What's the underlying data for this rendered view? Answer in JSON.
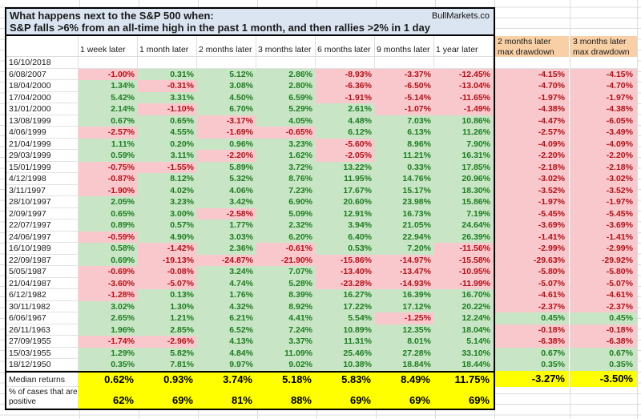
{
  "title": {
    "line1": "What happens next to the S&P 500 when:",
    "line2": "S&P falls >6% from an all-time high in the past 1 month, and then rallies >2% in 1 day",
    "brand": "BullMarkets.co"
  },
  "colors": {
    "title_bg": "#dbe5f1",
    "peach": "#f9cfa6",
    "green_bg": "#c8e6c6",
    "green_text": "#1d7c1f",
    "red_bg": "#f9c8cd",
    "red_text": "#b11016",
    "yellow": "#ffff00",
    "grid": "#dcdcdc"
  },
  "chart_data": {
    "type": "table",
    "columns": [
      "1 week later",
      "1 month later",
      "2 months later",
      "3 months later",
      "6 months later",
      "9 months later",
      "1 year later"
    ],
    "drawdown_columns": [
      {
        "line1": "2 months later",
        "line2": "max drawdown"
      },
      {
        "line1": "3 months later",
        "line2": "max drawdown"
      }
    ],
    "rows": [
      {
        "date": "16/10/2018",
        "values": [
          null,
          null,
          null,
          null,
          null,
          null,
          null
        ],
        "drawdowns": [
          null,
          null
        ]
      },
      {
        "date": "6/08/2007",
        "values": [
          "-1.00%",
          "0.31%",
          "5.12%",
          "2.86%",
          "-8.93%",
          "-3.37%",
          "-12.45%"
        ],
        "drawdowns": [
          "-4.15%",
          "-4.15%"
        ]
      },
      {
        "date": "18/04/2000",
        "values": [
          "1.34%",
          "-0.31%",
          "3.08%",
          "2.80%",
          "-6.36%",
          "-6.50%",
          "-13.04%"
        ],
        "drawdowns": [
          "-4.70%",
          "-4.70%"
        ]
      },
      {
        "date": "17/04/2000",
        "values": [
          "5.42%",
          "3.31%",
          "4.50%",
          "6.59%",
          "-1.91%",
          "-5.14%",
          "-11.65%"
        ],
        "drawdowns": [
          "-1.97%",
          "-1.97%"
        ]
      },
      {
        "date": "31/01/2000",
        "values": [
          "2.14%",
          "-1.10%",
          "6.70%",
          "5.29%",
          "2.61%",
          "-1.07%",
          "-1.49%"
        ],
        "drawdowns": [
          "-4.38%",
          "-4.38%"
        ]
      },
      {
        "date": "13/08/1999",
        "values": [
          "0.67%",
          "0.65%",
          "-3.17%",
          "4.05%",
          "4.48%",
          "7.03%",
          "10.86%"
        ],
        "drawdowns": [
          "-4.47%",
          "-6.05%"
        ]
      },
      {
        "date": "4/06/1999",
        "values": [
          "-2.57%",
          "4.55%",
          "-1.69%",
          "-0.65%",
          "6.12%",
          "6.13%",
          "11.26%"
        ],
        "drawdowns": [
          "-2.57%",
          "-3.49%"
        ]
      },
      {
        "date": "21/04/1999",
        "values": [
          "1.11%",
          "0.20%",
          "0.96%",
          "3.23%",
          "-5.60%",
          "8.96%",
          "7.90%"
        ],
        "drawdowns": [
          "-4.09%",
          "-4.09%"
        ]
      },
      {
        "date": "29/03/1999",
        "values": [
          "0.59%",
          "3.11%",
          "-2.20%",
          "1.62%",
          "-2.05%",
          "11.21%",
          "16.31%"
        ],
        "drawdowns": [
          "-2.20%",
          "-2.20%"
        ]
      },
      {
        "date": "15/01/1999",
        "values": [
          "-0.75%",
          "-1.55%",
          "5.89%",
          "3.72%",
          "13.22%",
          "0.33%",
          "17.85%"
        ],
        "drawdowns": [
          "-2.18%",
          "-2.18%"
        ]
      },
      {
        "date": "4/12/1998",
        "values": [
          "-0.87%",
          "8.12%",
          "5.32%",
          "8.76%",
          "11.95%",
          "14.76%",
          "20.96%"
        ],
        "drawdowns": [
          "-3.02%",
          "-3.02%"
        ]
      },
      {
        "date": "3/11/1997",
        "values": [
          "-1.90%",
          "4.02%",
          "4.06%",
          "7.23%",
          "17.67%",
          "15.17%",
          "18.30%"
        ],
        "drawdowns": [
          "-3.52%",
          "-3.52%"
        ]
      },
      {
        "date": "28/10/1997",
        "values": [
          "2.05%",
          "3.23%",
          "3.42%",
          "6.90%",
          "20.60%",
          "23.98%",
          "15.86%"
        ],
        "drawdowns": [
          "-1.97%",
          "-1.97%"
        ]
      },
      {
        "date": "2/09/1997",
        "values": [
          "0.65%",
          "3.00%",
          "-2.58%",
          "5.09%",
          "12.91%",
          "16.73%",
          "7.19%"
        ],
        "drawdowns": [
          "-5.45%",
          "-5.45%"
        ]
      },
      {
        "date": "22/07/1997",
        "values": [
          "0.89%",
          "0.57%",
          "1.77%",
          "2.32%",
          "3.94%",
          "21.05%",
          "24.64%"
        ],
        "drawdowns": [
          "-3.69%",
          "-3.69%"
        ]
      },
      {
        "date": "24/06/1997",
        "values": [
          "-0.59%",
          "4.90%",
          "3.03%",
          "6.20%",
          "6.40%",
          "22.94%",
          "26.39%"
        ],
        "drawdowns": [
          "-1.41%",
          "-1.41%"
        ]
      },
      {
        "date": "16/10/1989",
        "values": [
          "0.58%",
          "-1.42%",
          "2.36%",
          "-0.61%",
          "0.53%",
          "7.20%",
          "-11.56%"
        ],
        "drawdowns": [
          "-2.99%",
          "-2.99%"
        ]
      },
      {
        "date": "22/09/1987",
        "values": [
          "0.69%",
          "-19.13%",
          "-24.87%",
          "-21.90%",
          "-15.86%",
          "-14.97%",
          "-15.58%"
        ],
        "drawdowns": [
          "-29.63%",
          "-29.92%"
        ]
      },
      {
        "date": "5/05/1987",
        "values": [
          "-0.69%",
          "-0.08%",
          "3.24%",
          "7.07%",
          "-13.40%",
          "-13.47%",
          "-10.95%"
        ],
        "drawdowns": [
          "-5.80%",
          "-5.80%"
        ]
      },
      {
        "date": "21/04/1987",
        "values": [
          "-3.60%",
          "-5.07%",
          "4.74%",
          "5.28%",
          "-23.28%",
          "-14.93%",
          "-11.99%"
        ],
        "drawdowns": [
          "-5.07%",
          "-5.07%"
        ]
      },
      {
        "date": "6/12/1982",
        "values": [
          "-1.28%",
          "0.13%",
          "1.76%",
          "8.39%",
          "16.27%",
          "16.39%",
          "16.70%"
        ],
        "drawdowns": [
          "-4.61%",
          "-4.61%"
        ]
      },
      {
        "date": "30/11/1982",
        "values": [
          "3.02%",
          "1.30%",
          "4.32%",
          "8.92%",
          "17.22%",
          "17.12%",
          "20.22%"
        ],
        "drawdowns": [
          "-2.37%",
          "-2.37%"
        ]
      },
      {
        "date": "6/06/1967",
        "values": [
          "2.65%",
          "1.21%",
          "6.21%",
          "4.41%",
          "5.54%",
          "-1.25%",
          "12.24%"
        ],
        "drawdowns": [
          "0.45%",
          "0.45%"
        ]
      },
      {
        "date": "26/11/1963",
        "values": [
          "1.96%",
          "2.85%",
          "6.52%",
          "7.24%",
          "10.89%",
          "12.35%",
          "18.04%"
        ],
        "drawdowns": [
          "-0.18%",
          "-0.18%"
        ]
      },
      {
        "date": "27/09/1955",
        "values": [
          "-1.74%",
          "-2.96%",
          "4.13%",
          "3.37%",
          "11.31%",
          "8.01%",
          "5.14%"
        ],
        "drawdowns": [
          "-6.38%",
          "-6.38%"
        ]
      },
      {
        "date": "15/03/1955",
        "values": [
          "1.29%",
          "5.82%",
          "4.84%",
          "11.09%",
          "25.46%",
          "27.28%",
          "33.10%"
        ],
        "drawdowns": [
          "0.67%",
          "0.67%"
        ]
      },
      {
        "date": "18/12/1950",
        "values": [
          "0.35%",
          "7.81%",
          "9.97%",
          "9.02%",
          "10.38%",
          "18.84%",
          "18.44%"
        ],
        "drawdowns": [
          "0.35%",
          "0.35%"
        ]
      }
    ],
    "median": {
      "label": "Median returns",
      "values": [
        "0.62%",
        "0.93%",
        "3.74%",
        "5.18%",
        "5.83%",
        "8.49%",
        "11.75%"
      ],
      "drawdowns": [
        "-3.27%",
        "-3.50%"
      ]
    },
    "pct_positive": {
      "label": "% of cases that are positive",
      "values": [
        "62%",
        "69%",
        "81%",
        "88%",
        "69%",
        "69%",
        "69%"
      ]
    }
  }
}
